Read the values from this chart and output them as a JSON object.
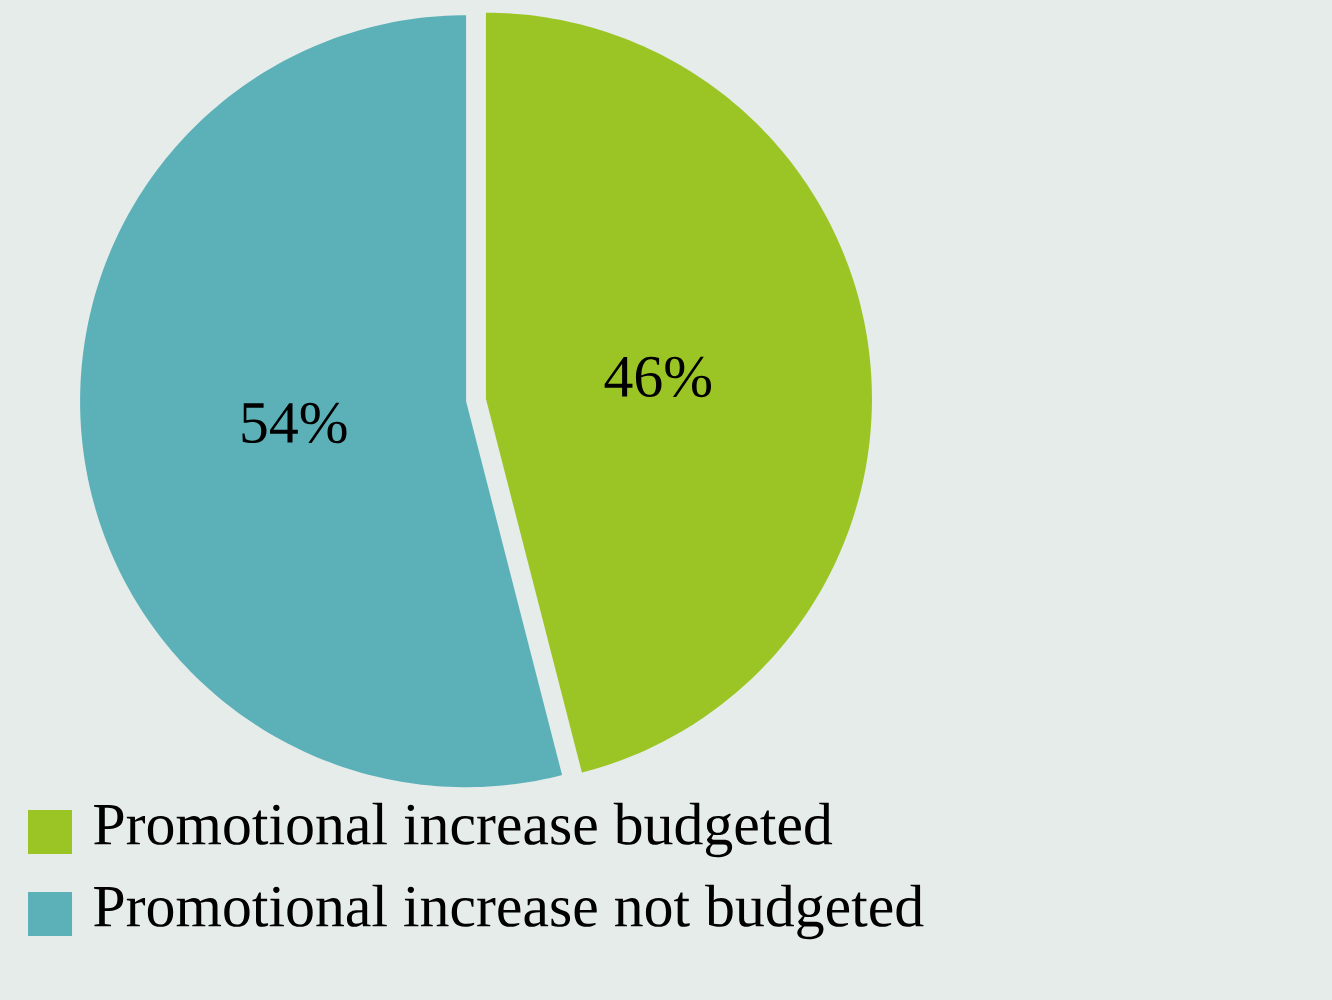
{
  "chart_data": {
    "type": "pie",
    "categories": [
      "Promotional increase budgeted",
      "Promotional increase not budgeted"
    ],
    "values": [
      46,
      54
    ],
    "colors": [
      "#9ac524",
      "#5cb1b9"
    ],
    "value_labels": [
      "46%",
      "54%"
    ],
    "legend": "bottom"
  }
}
